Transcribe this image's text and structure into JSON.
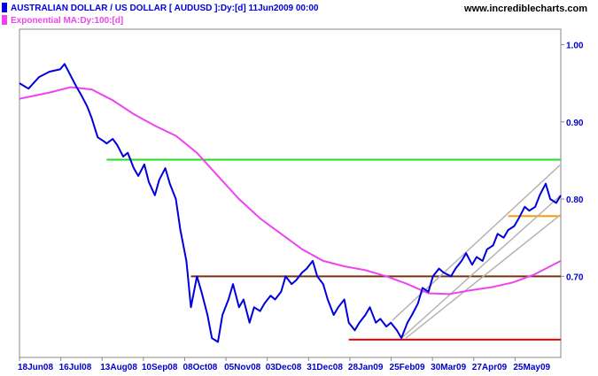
{
  "header": {
    "title": "AUSTRALIAN DOLLAR / US DOLLAR [ AUDUSD ]:Dy:[d]  11Jun2009 00:00",
    "ma_label": "Exponential MA:Dy:100:[d]",
    "watermark": "www.incrediblecharts.com"
  },
  "colors": {
    "price": "#0000dd",
    "ma": "#ee44ee",
    "green_line": "#22dd22",
    "brown_line": "#7a3010",
    "red_line": "#ee0000",
    "orange_line": "#ff9900",
    "channel": "#b4b4b4",
    "axis_text": "#0000cc"
  },
  "chart_data": {
    "type": "line",
    "title": "AUSTRALIAN DOLLAR / US DOLLAR [ AUDUSD ]:Dy:[d]  11Jun2009 00:00",
    "x_labels": [
      "18Jun08",
      "16Jul08",
      "13Aug08",
      "10Sep08",
      "08Oct08",
      "05Nov08",
      "03Dec08",
      "31Dec08",
      "28Jan09",
      "25Feb09",
      "30Mar09",
      "27Apr09",
      "25May09"
    ],
    "y_ticks": [
      1.0,
      0.9,
      0.8,
      0.7
    ],
    "ylim": [
      0.595,
      1.02
    ],
    "xlim": [
      "2008-06-16",
      "2009-06-11"
    ],
    "series": [
      {
        "name": "AUSTRALIAN DOLLAR / US DOLLAR [ AUDUSD ]",
        "x": [
          "2008-06-16",
          "2008-06-22",
          "2008-06-29",
          "2008-07-06",
          "2008-07-13",
          "2008-07-16",
          "2008-07-20",
          "2008-07-24",
          "2008-07-27",
          "2008-07-31",
          "2008-08-03",
          "2008-08-07",
          "2008-08-11",
          "2008-08-13",
          "2008-08-17",
          "2008-08-20",
          "2008-08-24",
          "2008-08-27",
          "2008-08-31",
          "2008-09-03",
          "2008-09-07",
          "2008-09-10",
          "2008-09-14",
          "2008-09-17",
          "2008-09-21",
          "2008-09-24",
          "2008-09-28",
          "2008-10-01",
          "2008-10-05",
          "2008-10-08",
          "2008-10-12",
          "2008-10-15",
          "2008-10-19",
          "2008-10-22",
          "2008-10-26",
          "2008-10-29",
          "2008-11-02",
          "2008-11-05",
          "2008-11-09",
          "2008-11-12",
          "2008-11-16",
          "2008-11-19",
          "2008-11-23",
          "2008-11-26",
          "2008-11-30",
          "2008-12-03",
          "2008-12-07",
          "2008-12-10",
          "2008-12-14",
          "2008-12-17",
          "2008-12-21",
          "2008-12-24",
          "2008-12-28",
          "2008-12-31",
          "2009-01-04",
          "2009-01-07",
          "2009-01-11",
          "2009-01-14",
          "2009-01-18",
          "2009-01-21",
          "2009-01-25",
          "2009-01-28",
          "2009-02-01",
          "2009-02-04",
          "2009-02-08",
          "2009-02-11",
          "2009-02-15",
          "2009-02-18",
          "2009-02-22",
          "2009-02-25",
          "2009-03-01",
          "2009-03-04",
          "2009-03-08",
          "2009-03-11",
          "2009-03-15",
          "2009-03-18",
          "2009-03-22",
          "2009-03-25",
          "2009-03-30",
          "2009-04-02",
          "2009-04-06",
          "2009-04-09",
          "2009-04-13",
          "2009-04-16",
          "2009-04-20",
          "2009-04-23",
          "2009-04-27",
          "2009-04-30",
          "2009-05-04",
          "2009-05-07",
          "2009-05-11",
          "2009-05-14",
          "2009-05-18",
          "2009-05-21",
          "2009-05-25",
          "2009-05-28",
          "2009-06-01",
          "2009-06-04",
          "2009-06-08",
          "2009-06-11"
        ],
        "values": [
          0.95,
          0.943,
          0.958,
          0.965,
          0.968,
          0.975,
          0.96,
          0.945,
          0.935,
          0.92,
          0.905,
          0.88,
          0.875,
          0.872,
          0.878,
          0.87,
          0.855,
          0.86,
          0.84,
          0.83,
          0.845,
          0.822,
          0.805,
          0.825,
          0.84,
          0.82,
          0.8,
          0.76,
          0.72,
          0.66,
          0.7,
          0.68,
          0.65,
          0.62,
          0.615,
          0.65,
          0.67,
          0.69,
          0.66,
          0.67,
          0.64,
          0.66,
          0.655,
          0.665,
          0.675,
          0.67,
          0.68,
          0.7,
          0.69,
          0.695,
          0.705,
          0.71,
          0.72,
          0.7,
          0.69,
          0.67,
          0.65,
          0.66,
          0.67,
          0.64,
          0.63,
          0.64,
          0.65,
          0.66,
          0.64,
          0.645,
          0.635,
          0.64,
          0.63,
          0.62,
          0.64,
          0.65,
          0.665,
          0.685,
          0.68,
          0.7,
          0.71,
          0.705,
          0.7,
          0.71,
          0.72,
          0.73,
          0.715,
          0.725,
          0.72,
          0.735,
          0.74,
          0.755,
          0.75,
          0.76,
          0.765,
          0.775,
          0.79,
          0.785,
          0.79,
          0.805,
          0.82,
          0.8,
          0.795,
          0.805
        ]
      },
      {
        "name": "Exponential MA:Dy:100:[d]",
        "x": [
          "2008-06-16",
          "2008-07-06",
          "2008-07-20",
          "2008-08-03",
          "2008-08-17",
          "2008-08-31",
          "2008-09-14",
          "2008-09-28",
          "2008-10-12",
          "2008-10-26",
          "2008-11-09",
          "2008-11-23",
          "2008-12-07",
          "2008-12-21",
          "2009-01-04",
          "2009-01-18",
          "2009-02-01",
          "2009-02-15",
          "2009-03-01",
          "2009-03-15",
          "2009-03-29",
          "2009-04-12",
          "2009-04-26",
          "2009-05-10",
          "2009-05-24",
          "2009-06-11"
        ],
        "values": [
          0.93,
          0.938,
          0.945,
          0.942,
          0.928,
          0.91,
          0.895,
          0.882,
          0.86,
          0.83,
          0.8,
          0.775,
          0.755,
          0.735,
          0.72,
          0.713,
          0.708,
          0.7,
          0.69,
          0.678,
          0.677,
          0.682,
          0.686,
          0.692,
          0.702,
          0.72
        ]
      }
    ],
    "horizontal_lines": [
      {
        "color": "green",
        "value": 0.851,
        "from": "2008-08-13",
        "to": "2009-06-11"
      },
      {
        "color": "brown",
        "value": 0.7,
        "from": "2008-10-08",
        "to": "2009-06-11"
      },
      {
        "color": "red",
        "value": 0.618,
        "from": "2009-01-21",
        "to": "2009-06-11"
      },
      {
        "color": "orange",
        "value": 0.778,
        "from": "2009-05-07",
        "to": "2009-06-11"
      }
    ],
    "channel_lines": [
      {
        "from": [
          "2009-02-19",
          0.643
        ],
        "to": [
          "2009-06-11",
          0.845
        ]
      },
      {
        "from": [
          "2009-02-25",
          0.62
        ],
        "to": [
          "2009-06-11",
          0.805
        ]
      },
      {
        "from": [
          "2009-02-28",
          0.62
        ],
        "to": [
          "2009-06-11",
          0.78
        ]
      }
    ],
    "grid": false,
    "legend": "top-left"
  }
}
